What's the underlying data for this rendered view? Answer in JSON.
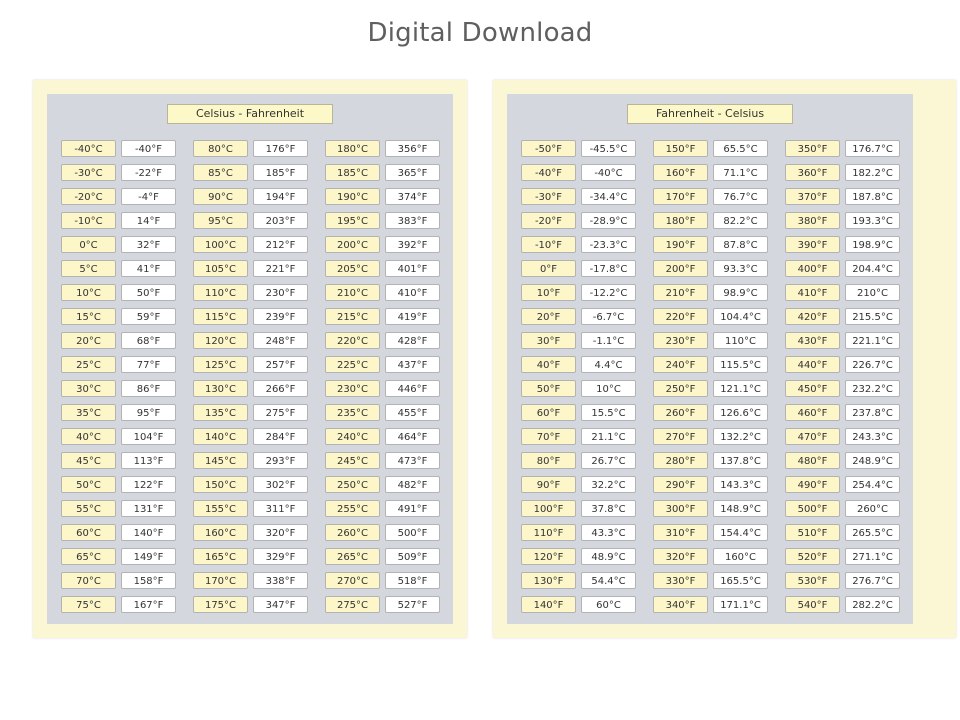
{
  "title": "Digital Download",
  "sheets": [
    {
      "title": "Celsius - Fahrenheit",
      "columns": [
        {
          "keys": [
            "-40°C",
            "-30°C",
            "-20°C",
            "-10°C",
            "0°C",
            "5°C",
            "10°C",
            "15°C",
            "20°C",
            "25°C",
            "30°C",
            "35°C",
            "40°C",
            "45°C",
            "50°C",
            "55°C",
            "60°C",
            "65°C",
            "70°C",
            "75°C"
          ],
          "values": [
            "-40°F",
            "-22°F",
            "-4°F",
            "14°F",
            "32°F",
            "41°F",
            "50°F",
            "59°F",
            "68°F",
            "77°F",
            "86°F",
            "95°F",
            "104°F",
            "113°F",
            "122°F",
            "131°F",
            "140°F",
            "149°F",
            "158°F",
            "167°F"
          ]
        },
        {
          "keys": [
            "80°C",
            "85°C",
            "90°C",
            "95°C",
            "100°C",
            "105°C",
            "110°C",
            "115°C",
            "120°C",
            "125°C",
            "130°C",
            "135°C",
            "140°C",
            "145°C",
            "150°C",
            "155°C",
            "160°C",
            "165°C",
            "170°C",
            "175°C"
          ],
          "values": [
            "176°F",
            "185°F",
            "194°F",
            "203°F",
            "212°F",
            "221°F",
            "230°F",
            "239°F",
            "248°F",
            "257°F",
            "266°F",
            "275°F",
            "284°F",
            "293°F",
            "302°F",
            "311°F",
            "320°F",
            "329°F",
            "338°F",
            "347°F"
          ]
        },
        {
          "keys": [
            "180°C",
            "185°C",
            "190°C",
            "195°C",
            "200°C",
            "205°C",
            "210°C",
            "215°C",
            "220°C",
            "225°C",
            "230°C",
            "235°C",
            "240°C",
            "245°C",
            "250°C",
            "255°C",
            "260°C",
            "265°C",
            "270°C",
            "275°C"
          ],
          "values": [
            "356°F",
            "365°F",
            "374°F",
            "383°F",
            "392°F",
            "401°F",
            "410°F",
            "419°F",
            "428°F",
            "437°F",
            "446°F",
            "455°F",
            "464°F",
            "473°F",
            "482°F",
            "491°F",
            "500°F",
            "509°F",
            "518°F",
            "527°F"
          ]
        }
      ]
    },
    {
      "title": "Fahrenheit - Celsius",
      "columns": [
        {
          "keys": [
            "-50°F",
            "-40°F",
            "-30°F",
            "-20°F",
            "-10°F",
            "0°F",
            "10°F",
            "20°F",
            "30°F",
            "40°F",
            "50°F",
            "60°F",
            "70°F",
            "80°F",
            "90°F",
            "100°F",
            "110°F",
            "120°F",
            "130°F",
            "140°F"
          ],
          "values": [
            "-45.5°C",
            "-40°C",
            "-34.4°C",
            "-28.9°C",
            "-23.3°C",
            "-17.8°C",
            "-12.2°C",
            "-6.7°C",
            "-1.1°C",
            "4.4°C",
            "10°C",
            "15.5°C",
            "21.1°C",
            "26.7°C",
            "32.2°C",
            "37.8°C",
            "43.3°C",
            "48.9°C",
            "54.4°C",
            "60°C"
          ]
        },
        {
          "keys": [
            "150°F",
            "160°F",
            "170°F",
            "180°F",
            "190°F",
            "200°F",
            "210°F",
            "220°F",
            "230°F",
            "240°F",
            "250°F",
            "260°F",
            "270°F",
            "280°F",
            "290°F",
            "300°F",
            "310°F",
            "320°F",
            "330°F",
            "340°F"
          ],
          "values": [
            "65.5°C",
            "71.1°C",
            "76.7°C",
            "82.2°C",
            "87.8°C",
            "93.3°C",
            "98.9°C",
            "104.4°C",
            "110°C",
            "115.5°C",
            "121.1°C",
            "126.6°C",
            "132.2°C",
            "137.8°C",
            "143.3°C",
            "148.9°C",
            "154.4°C",
            "160°C",
            "165.5°C",
            "171.1°C"
          ]
        },
        {
          "keys": [
            "350°F",
            "360°F",
            "370°F",
            "380°F",
            "390°F",
            "400°F",
            "410°F",
            "420°F",
            "430°F",
            "440°F",
            "450°F",
            "460°F",
            "470°F",
            "480°F",
            "490°F",
            "500°F",
            "510°F",
            "520°F",
            "530°F",
            "540°F"
          ],
          "values": [
            "176.7°C",
            "182.2°C",
            "187.8°C",
            "193.3°C",
            "198.9°C",
            "204.4°C",
            "210°C",
            "215.5°C",
            "221.1°C",
            "226.7°C",
            "232.2°C",
            "237.8°C",
            "243.3°C",
            "248.9°C",
            "254.4°C",
            "260°C",
            "265.5°C",
            "271.1°C",
            "276.7°C",
            "282.2°C"
          ]
        }
      ]
    }
  ]
}
